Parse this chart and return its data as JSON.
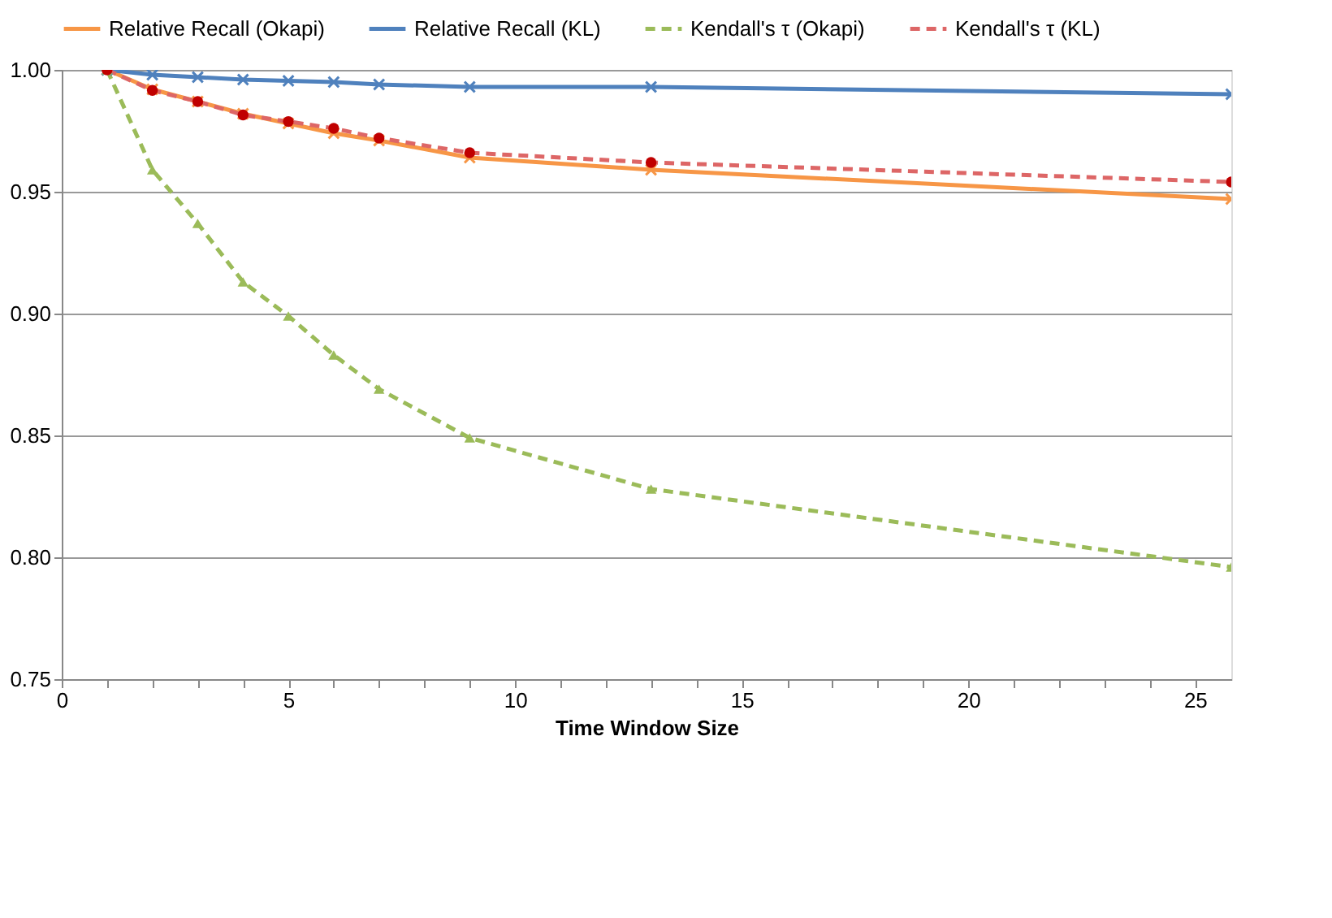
{
  "chart_data": {
    "type": "line",
    "xlabel": "Time Window Size",
    "x": [
      1,
      2,
      3,
      4,
      5,
      6,
      7,
      9,
      13,
      25.8
    ],
    "series": [
      {
        "name": "Relative Recall (Okapi)",
        "color": "#f79646",
        "line_style": "solid",
        "marker": "cross",
        "values": [
          1.0,
          0.992,
          0.987,
          0.982,
          0.978,
          0.974,
          0.971,
          0.964,
          0.959,
          0.947
        ]
      },
      {
        "name": "Relative Recall (KL)",
        "color": "#4f81bd",
        "line_style": "solid",
        "marker": "cross",
        "values": [
          1.0,
          0.998,
          0.997,
          0.996,
          0.9955,
          0.995,
          0.994,
          0.993,
          0.993,
          0.99
        ]
      },
      {
        "name": "Kendall's τ (Okapi)",
        "color": "#9bbb59",
        "line_style": "dashed",
        "marker": "triangle",
        "values": [
          1.0,
          0.959,
          0.937,
          0.913,
          0.899,
          0.883,
          0.869,
          0.849,
          0.828,
          0.796
        ]
      },
      {
        "name": "Kendall's τ (KL)",
        "color": "#dd6666",
        "line_style": "dashed",
        "marker": "circle",
        "values": [
          1.0,
          0.9916,
          0.987,
          0.9815,
          0.9788,
          0.976,
          0.972,
          0.966,
          0.962,
          0.954
        ]
      }
    ],
    "xlim": [
      0,
      25.8
    ],
    "xticks": [
      0,
      {
        "value": 1,
        "label": null
      },
      {
        "value": 2,
        "label": null
      },
      {
        "value": 3,
        "label": null
      },
      {
        "value": 4,
        "label": null
      },
      5,
      {
        "value": 6,
        "label": null
      },
      {
        "value": 7,
        "label": null
      },
      {
        "value": 8,
        "label": null
      },
      {
        "value": 9,
        "label": null
      },
      10,
      {
        "value": 11,
        "label": null
      },
      {
        "value": 12,
        "label": null
      },
      {
        "value": 13,
        "label": null
      },
      {
        "value": 14,
        "label": null
      },
      15,
      {
        "value": 16,
        "label": null
      },
      {
        "value": 17,
        "label": null
      },
      {
        "value": 18,
        "label": null
      },
      {
        "value": 19,
        "label": null
      },
      20,
      {
        "value": 21,
        "label": null
      },
      {
        "value": 22,
        "label": null
      },
      {
        "value": 23,
        "label": null
      },
      {
        "value": 24,
        "label": null
      },
      25
    ],
    "ylim": [
      0.75,
      1.0
    ],
    "yticks": [
      {
        "value": 0.75,
        "label": "0.75"
      },
      {
        "value": 0.8,
        "label": "0.80"
      },
      {
        "value": 0.85,
        "label": "0.85"
      },
      {
        "value": 0.9,
        "label": "0.90"
      },
      {
        "value": 0.95,
        "label": "0.95"
      },
      {
        "value": 1.0,
        "label": "1.00"
      }
    ],
    "grid": "y",
    "legend": "top"
  }
}
